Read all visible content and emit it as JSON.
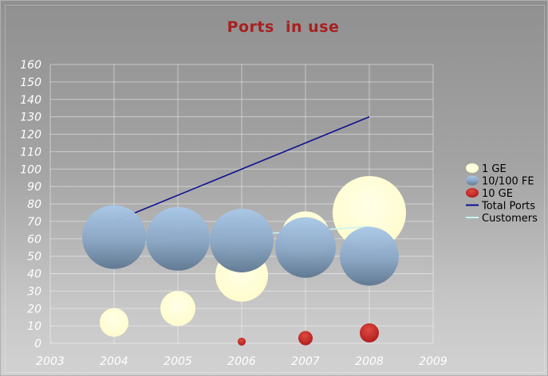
{
  "chart_data": {
    "type": "bubble",
    "title": "Ports  in use",
    "x_ticks": [
      "2003",
      "2004",
      "2005",
      "2006",
      "2007",
      "2008",
      "2009"
    ],
    "y_ticks": [
      "0",
      "10",
      "20",
      "30",
      "40",
      "50",
      "60",
      "70",
      "80",
      "90",
      "100",
      "110",
      "120",
      "130",
      "140",
      "150",
      "160"
    ],
    "xlim": [
      2003,
      2009
    ],
    "ylim": [
      0,
      160
    ],
    "grid": true,
    "legend_position": "right",
    "bubble_series": [
      {
        "name": "1 GE",
        "color": "#ffffcc",
        "points": [
          {
            "x": 2004,
            "y": 12,
            "size": 18
          },
          {
            "x": 2005,
            "y": 20,
            "size": 22
          },
          {
            "x": 2006,
            "y": 39,
            "size": 33
          },
          {
            "x": 2007,
            "y": 62,
            "size": 30
          },
          {
            "x": 2008,
            "y": 75,
            "size": 46
          }
        ]
      },
      {
        "name": "10/100 FE",
        "color": "#90acc8",
        "points": [
          {
            "x": 2004,
            "y": 61,
            "size": 40
          },
          {
            "x": 2005,
            "y": 60,
            "size": 40
          },
          {
            "x": 2006,
            "y": 59,
            "size": 40
          },
          {
            "x": 2007,
            "y": 55,
            "size": 38
          },
          {
            "x": 2008,
            "y": 50,
            "size": 37
          }
        ]
      },
      {
        "name": "10 GE",
        "color": "#c0282a",
        "points": [
          {
            "x": 2006,
            "y": 1,
            "size": 5
          },
          {
            "x": 2007,
            "y": 3,
            "size": 9
          },
          {
            "x": 2008,
            "y": 6,
            "size": 12
          }
        ]
      }
    ],
    "line_series": [
      {
        "name": "Total Ports",
        "color": "#101090",
        "x": [
          2004,
          2008
        ],
        "y": [
          70,
          130
        ]
      },
      {
        "name": "Customers",
        "color": "#c8f4f4",
        "x": [
          2004,
          2008
        ],
        "y": [
          57,
          67
        ]
      }
    ]
  }
}
